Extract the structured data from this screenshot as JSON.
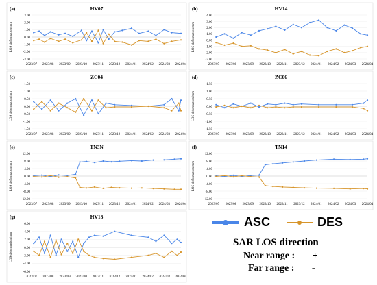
{
  "figure": {
    "series_colors": {
      "ASC": "#4a86e8",
      "DES": "#d7952b"
    },
    "legend": {
      "asc_label": "ASC",
      "des_label": "DES",
      "sar_title": "SAR LOS direction",
      "near_label": "Near range :",
      "near_sign": "+",
      "far_label": "Far range :",
      "far_sign": "-"
    }
  },
  "chart_data": [
    {
      "type": "line",
      "panel": "(a)",
      "title": "HV07",
      "ylabel": "LOS deformation/mm",
      "yticks": [
        "3.00",
        "2.00",
        "1.00",
        "0.00",
        "-1.00",
        "-2.00",
        "-3.00"
      ],
      "ylim": [
        -3,
        3
      ],
      "xticks": [
        "2023/07",
        "2023/08",
        "2023/09",
        "2023/10",
        "2023/11",
        "2023/12",
        "2024/01",
        "2024/02",
        "2024/03",
        "2024/04"
      ],
      "series": [
        {
          "name": "ASC",
          "x": [
            "2023-07-05",
            "2023-07-15",
            "2023-07-25",
            "2023-08-05",
            "2023-08-20",
            "2023-09-01",
            "2023-09-15",
            "2023-10-01",
            "2023-10-10",
            "2023-10-20",
            "2023-11-01",
            "2023-11-10",
            "2023-11-20",
            "2023-12-01",
            "2023-12-15",
            "2024-01-01",
            "2024-01-15",
            "2024-02-01",
            "2024-02-15",
            "2024-03-01",
            "2024-03-15",
            "2024-04-01"
          ],
          "y": [
            0.6,
            0.8,
            0.2,
            0.7,
            0.3,
            0.5,
            0.1,
            0.9,
            -0.5,
            0.8,
            -0.8,
            1.0,
            -0.3,
            0.7,
            0.9,
            1.2,
            0.5,
            0.8,
            0.2,
            1.0,
            0.6,
            0.5
          ]
        },
        {
          "name": "DES",
          "x": [
            "2023-07-05",
            "2023-07-15",
            "2023-07-25",
            "2023-08-05",
            "2023-08-20",
            "2023-09-01",
            "2023-09-15",
            "2023-10-01",
            "2023-10-10",
            "2023-10-20",
            "2023-11-01",
            "2023-11-10",
            "2023-11-20",
            "2023-12-01",
            "2023-12-15",
            "2024-01-01",
            "2024-01-15",
            "2024-02-01",
            "2024-02-15",
            "2024-03-01",
            "2024-03-15",
            "2024-04-01"
          ],
          "y": [
            -0.5,
            -0.3,
            -0.7,
            -0.2,
            -0.6,
            -0.3,
            -0.8,
            -0.4,
            0.6,
            -0.6,
            0.9,
            -0.9,
            0.4,
            -0.6,
            -0.7,
            -1.1,
            -0.5,
            -0.6,
            -0.3,
            -0.9,
            -0.6,
            -0.4
          ]
        }
      ]
    },
    {
      "type": "line",
      "panel": "(b)",
      "title": "HV14",
      "ylabel": "LOS deformation/mm",
      "yticks": [
        "4.00",
        "3.00",
        "2.00",
        "1.00",
        "0.00",
        "-1.00",
        "-2.00",
        "-3.00"
      ],
      "ylim": [
        -3,
        4
      ],
      "xticks": [
        "2023/07",
        "2023/08",
        "2023/09",
        "2023/10",
        "2023/11",
        "2023/12",
        "2024/01",
        "2024/02",
        "2024/03",
        "2024/04"
      ],
      "series": [
        {
          "name": "ASC",
          "x": [
            "2023-07-05",
            "2023-07-20",
            "2023-08-05",
            "2023-08-20",
            "2023-09-05",
            "2023-09-20",
            "2023-10-05",
            "2023-10-20",
            "2023-11-05",
            "2023-11-20",
            "2023-12-05",
            "2023-12-20",
            "2024-01-05",
            "2024-01-20",
            "2024-02-05",
            "2024-02-20",
            "2024-03-05",
            "2024-03-20",
            "2024-04-01"
          ],
          "y": [
            0.5,
            1.0,
            0.3,
            1.2,
            0.8,
            1.5,
            1.8,
            2.2,
            1.6,
            2.5,
            2.0,
            2.8,
            3.2,
            2.0,
            1.5,
            2.4,
            1.9,
            1.0,
            0.8
          ]
        },
        {
          "name": "DES",
          "x": [
            "2023-07-05",
            "2023-07-20",
            "2023-08-05",
            "2023-08-20",
            "2023-09-05",
            "2023-09-20",
            "2023-10-05",
            "2023-10-20",
            "2023-11-05",
            "2023-11-20",
            "2023-12-05",
            "2023-12-20",
            "2024-01-05",
            "2024-01-20",
            "2024-02-05",
            "2024-02-20",
            "2024-03-05",
            "2024-03-20",
            "2024-04-01"
          ],
          "y": [
            -0.4,
            -0.8,
            -0.5,
            -1.0,
            -0.9,
            -1.4,
            -1.6,
            -2.0,
            -1.5,
            -2.2,
            -1.8,
            -2.4,
            -2.5,
            -1.8,
            -1.4,
            -2.0,
            -1.7,
            -1.2,
            -1.0
          ]
        }
      ]
    },
    {
      "type": "line",
      "panel": "(c)",
      "title": "ZC04",
      "ylabel": "LOS deformation/mm",
      "yticks": [
        "1.50",
        "1.00",
        "0.50",
        "0.00",
        "-0.50",
        "-1.00",
        "-1.50"
      ],
      "ylim": [
        -1.5,
        1.5
      ],
      "xticks": [
        "2023/07",
        "2023/08",
        "2023/09",
        "2023/10",
        "2023/11",
        "2023/12",
        "2024/01",
        "2024/02",
        "2024/03",
        "2024/04"
      ],
      "series": [
        {
          "name": "ASC",
          "x": [
            "2023-07-05",
            "2023-07-20",
            "2023-08-05",
            "2023-08-20",
            "2023-09-05",
            "2023-09-20",
            "2023-10-05",
            "2023-10-20",
            "2023-11-01",
            "2023-11-15",
            "2023-12-01",
            "2024-01-01",
            "2024-02-01",
            "2024-03-01",
            "2024-03-15",
            "2024-03-28",
            "2024-04-01"
          ],
          "y": [
            0.3,
            -0.2,
            0.4,
            -0.3,
            0.2,
            0.5,
            -0.6,
            0.4,
            -0.5,
            0.2,
            0.1,
            0.05,
            0.0,
            0.1,
            0.5,
            -0.3,
            0.4
          ]
        },
        {
          "name": "DES",
          "x": [
            "2023-07-05",
            "2023-07-20",
            "2023-08-05",
            "2023-08-20",
            "2023-09-05",
            "2023-09-20",
            "2023-10-05",
            "2023-10-20",
            "2023-11-01",
            "2023-11-15",
            "2023-12-01",
            "2024-01-01",
            "2024-02-01",
            "2024-03-01",
            "2024-03-15",
            "2024-03-28",
            "2024-04-01"
          ],
          "y": [
            -0.2,
            0.3,
            -0.3,
            0.2,
            -0.1,
            -0.4,
            0.5,
            -0.3,
            0.4,
            -0.1,
            -0.05,
            -0.05,
            0.0,
            -0.1,
            -0.3,
            0.2,
            -0.3
          ]
        }
      ]
    },
    {
      "type": "line",
      "panel": "(d)",
      "title": "ZC06",
      "ylabel": "LOS deformation/mm",
      "yticks": [
        "1.50",
        "1.00",
        "0.50",
        "0.00",
        "-0.50",
        "-1.00",
        "-1.50"
      ],
      "ylim": [
        -1.5,
        1.5
      ],
      "xticks": [
        "2023/07",
        "2023/08",
        "2023/09",
        "2023/10",
        "2023/11",
        "2023/12",
        "2024/01",
        "2024/02",
        "2024/03",
        "2024/04"
      ],
      "series": [
        {
          "name": "ASC",
          "x": [
            "2023-07-05",
            "2023-07-20",
            "2023-08-05",
            "2023-08-20",
            "2023-09-05",
            "2023-09-20",
            "2023-10-05",
            "2023-10-20",
            "2023-11-05",
            "2023-11-20",
            "2023-12-05",
            "2024-01-05",
            "2024-02-05",
            "2024-03-05",
            "2024-03-25",
            "2024-04-01"
          ],
          "y": [
            0.1,
            -0.1,
            0.15,
            0.0,
            0.2,
            -0.05,
            0.15,
            0.1,
            0.2,
            0.1,
            0.15,
            0.1,
            0.1,
            0.1,
            0.2,
            0.4
          ]
        },
        {
          "name": "DES",
          "x": [
            "2023-07-05",
            "2023-07-20",
            "2023-08-05",
            "2023-08-20",
            "2023-09-05",
            "2023-09-20",
            "2023-10-05",
            "2023-10-20",
            "2023-11-05",
            "2023-11-20",
            "2023-12-05",
            "2024-01-05",
            "2024-02-05",
            "2024-03-05",
            "2024-03-25",
            "2024-04-01"
          ],
          "y": [
            -0.05,
            0.05,
            -0.1,
            0.0,
            -0.1,
            0.05,
            -0.1,
            -0.05,
            -0.1,
            -0.05,
            -0.05,
            -0.05,
            -0.05,
            -0.05,
            -0.15,
            -0.3
          ]
        }
      ]
    },
    {
      "type": "line",
      "panel": "(e)",
      "title": "TN3N",
      "ylabel": "LOS deformation/mm",
      "yticks": [
        "12.00",
        "8.00",
        "4.00",
        "0.00",
        "-4.00",
        "-8.00",
        "-12.00"
      ],
      "ylim": [
        -12,
        12
      ],
      "xticks": [
        "2023/07",
        "2023/08",
        "2023/09",
        "2023/10",
        "2023/11",
        "2023/12",
        "2024/01",
        "2024/02",
        "2024/03",
        "2024/04"
      ],
      "series": [
        {
          "name": "ASC",
          "x": [
            "2023-07-05",
            "2023-07-20",
            "2023-08-05",
            "2023-08-20",
            "2023-09-05",
            "2023-09-20",
            "2023-09-28",
            "2023-10-10",
            "2023-10-25",
            "2023-11-10",
            "2023-11-25",
            "2023-12-10",
            "2024-01-01",
            "2024-01-20",
            "2024-02-10",
            "2024-03-01",
            "2024-03-20",
            "2024-04-01"
          ],
          "y": [
            0.2,
            0.5,
            -0.3,
            0.6,
            0.3,
            1.0,
            7.5,
            7.8,
            7.2,
            8.0,
            7.6,
            7.9,
            8.2,
            8.0,
            8.5,
            8.6,
            9.0,
            9.2
          ]
        },
        {
          "name": "DES",
          "x": [
            "2023-07-05",
            "2023-07-20",
            "2023-08-05",
            "2023-08-20",
            "2023-09-05",
            "2023-09-20",
            "2023-09-28",
            "2023-10-10",
            "2023-10-25",
            "2023-11-10",
            "2023-11-25",
            "2023-12-10",
            "2024-01-01",
            "2024-01-20",
            "2024-02-10",
            "2024-03-01",
            "2024-03-20",
            "2024-04-01"
          ],
          "y": [
            -0.2,
            -0.5,
            0.3,
            -0.6,
            -0.3,
            -1.0,
            -6.0,
            -6.3,
            -5.8,
            -6.5,
            -6.0,
            -6.2,
            -6.4,
            -6.3,
            -6.6,
            -6.8,
            -7.0,
            -7.0
          ]
        }
      ]
    },
    {
      "type": "line",
      "panel": "(f)",
      "title": "TN14",
      "ylabel": "LOS deformation/mm",
      "yticks": [
        "12.00",
        "8.00",
        "4.00",
        "0.00",
        "-4.00",
        "-8.00",
        "-12.00"
      ],
      "ylim": [
        -12,
        12
      ],
      "xticks": [
        "2023/07",
        "2023/08",
        "2023/09",
        "2023/10",
        "2023/11",
        "2023/12",
        "2024/01",
        "2024/02",
        "2024/03",
        "2024/04"
      ],
      "series": [
        {
          "name": "ASC",
          "x": [
            "2023-07-05",
            "2023-07-20",
            "2023-08-05",
            "2023-08-20",
            "2023-09-05",
            "2023-09-20",
            "2023-10-01",
            "2023-10-15",
            "2023-11-01",
            "2023-11-20",
            "2023-12-10",
            "2024-01-01",
            "2024-02-01",
            "2024-03-01",
            "2024-03-25",
            "2024-04-01"
          ],
          "y": [
            0.2,
            -0.3,
            0.4,
            -0.2,
            0.3,
            0.5,
            6.0,
            6.5,
            7.0,
            7.5,
            8.0,
            8.5,
            9.0,
            8.8,
            9.0,
            9.2
          ]
        },
        {
          "name": "DES",
          "x": [
            "2023-07-05",
            "2023-07-20",
            "2023-08-05",
            "2023-08-20",
            "2023-09-05",
            "2023-09-20",
            "2023-10-01",
            "2023-10-15",
            "2023-11-01",
            "2023-11-20",
            "2023-12-10",
            "2024-01-01",
            "2024-02-01",
            "2024-03-01",
            "2024-03-25",
            "2024-04-01"
          ],
          "y": [
            -0.2,
            0.3,
            -0.4,
            0.2,
            -0.3,
            -0.5,
            -5.0,
            -5.5,
            -5.8,
            -6.0,
            -6.2,
            -6.4,
            -6.5,
            -6.8,
            -6.6,
            -6.8
          ]
        }
      ]
    },
    {
      "type": "line",
      "panel": "(g)",
      "title": "HV18",
      "ylabel": "LOS deformation/mm",
      "yticks": [
        "6.00",
        "4.00",
        "2.00",
        "0.00",
        "-2.00",
        "-4.00",
        "-6.00"
      ],
      "ylim": [
        -6,
        6
      ],
      "xticks": [
        "2023/07",
        "2023/08",
        "2023/09",
        "2023/10",
        "2023/11",
        "2023/12",
        "2024/01",
        "2024/02",
        "2024/03",
        "2024/04"
      ],
      "series": [
        {
          "name": "ASC",
          "x": [
            "2023-07-05",
            "2023-07-15",
            "2023-07-25",
            "2023-08-05",
            "2023-08-15",
            "2023-08-25",
            "2023-09-05",
            "2023-09-15",
            "2023-09-25",
            "2023-10-05",
            "2023-10-15",
            "2023-10-25",
            "2023-11-10",
            "2023-12-01",
            "2024-01-01",
            "2024-02-01",
            "2024-02-15",
            "2024-03-01",
            "2024-03-15",
            "2024-03-25",
            "2024-04-01"
          ],
          "y": [
            1.0,
            2.5,
            -1.5,
            3.0,
            -2.0,
            2.0,
            -1.0,
            1.5,
            -2.5,
            1.0,
            2.5,
            3.0,
            2.8,
            4.0,
            3.0,
            2.5,
            1.5,
            3.0,
            1.0,
            2.0,
            1.2
          ]
        },
        {
          "name": "DES",
          "x": [
            "2023-07-05",
            "2023-07-15",
            "2023-07-25",
            "2023-08-05",
            "2023-08-15",
            "2023-08-25",
            "2023-09-05",
            "2023-09-15",
            "2023-09-25",
            "2023-10-05",
            "2023-10-15",
            "2023-10-25",
            "2023-11-10",
            "2023-12-01",
            "2024-01-01",
            "2024-02-01",
            "2024-02-15",
            "2024-03-01",
            "2024-03-15",
            "2024-03-25",
            "2024-04-01"
          ],
          "y": [
            -1.0,
            -2.0,
            1.5,
            -2.5,
            1.8,
            -1.8,
            1.0,
            -1.5,
            2.0,
            -1.0,
            -2.0,
            -2.5,
            -2.8,
            -3.0,
            -2.5,
            -2.0,
            -1.5,
            -2.5,
            -1.0,
            -2.0,
            -1.2
          ]
        }
      ]
    }
  ]
}
